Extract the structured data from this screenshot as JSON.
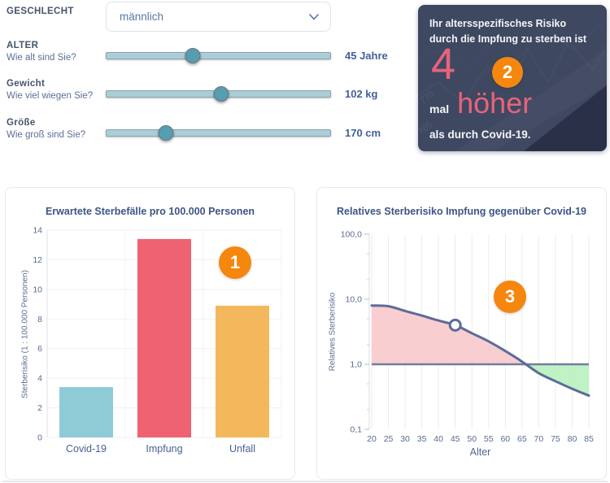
{
  "form": {
    "gender": {
      "label": "GESCHLECHT",
      "value": "männlich"
    },
    "sliders": [
      {
        "label": "ALTER",
        "question": "Wie alt sind Sie?",
        "value": "45 Jahre",
        "percent": 38.6
      },
      {
        "label": "Gewicht",
        "question": "Wie viel wiegen Sie?",
        "value": "102 kg",
        "percent": 51.4
      },
      {
        "label": "Größe",
        "question": "Wie groß sind Sie?",
        "value": "170 cm",
        "percent": 26.5
      }
    ]
  },
  "risk_card": {
    "intro": "Ihr altersspezifisches Risiko durch die Impfung zu sterben ist",
    "factor": "4",
    "unit_word": "mal",
    "comparison_word": "höher",
    "outro": "als durch Covid-19.",
    "watermark_numbers": [
      "770",
      "765"
    ]
  },
  "badges": {
    "bar_chart": "1",
    "risk_card": "2",
    "line_chart": "3"
  },
  "colors": {
    "accent_orange": "#f5870f",
    "pink_accent": "#e8637c",
    "card_bg": "#3e4860",
    "slider_track": "#a9ced8",
    "slider_thumb": "#569db0",
    "curve_line": "#5d6b99"
  },
  "chart_data": [
    {
      "type": "bar",
      "title": "Erwartete Sterbefälle pro 100.000 Personen",
      "ylabel": "Sterberisiko (1 : 100.000 Personen)",
      "xlabel": "",
      "categories": [
        "Covid-19",
        "Impfung",
        "Unfall"
      ],
      "values": [
        3.4,
        13.4,
        8.9
      ],
      "bar_colors": [
        "#8fcbd6",
        "#ee6272",
        "#f4b85c"
      ],
      "ylim": [
        0,
        14
      ],
      "ytick_step": 2,
      "grid": true
    },
    {
      "type": "line",
      "title": "Relatives Sterberisiko Impfung gegenüber Covid-19",
      "ylabel": "Relatives Sterberisiko",
      "xlabel": "Alter",
      "yscale": "log",
      "ylim": [
        0.1,
        100
      ],
      "ytick_values": [
        100,
        10,
        1,
        0.1
      ],
      "ytick_labels": [
        "100,0",
        "10,0",
        "1,0",
        "0,1"
      ],
      "xlim": [
        20,
        85
      ],
      "xtick_step": 5,
      "x": [
        20,
        25,
        30,
        35,
        40,
        45,
        50,
        55,
        60,
        65,
        70,
        75,
        80,
        85
      ],
      "y": [
        8.0,
        7.8,
        6.6,
        5.6,
        4.7,
        4.0,
        3.0,
        2.25,
        1.6,
        1.1,
        0.73,
        0.55,
        0.42,
        0.33
      ],
      "baseline": 1.0,
      "marker": {
        "x": 45,
        "y": 4.0
      },
      "area_above_baseline_color": "#f8c6c8",
      "area_below_baseline_color": "#b4f0ba",
      "grid": "vertical"
    }
  ]
}
